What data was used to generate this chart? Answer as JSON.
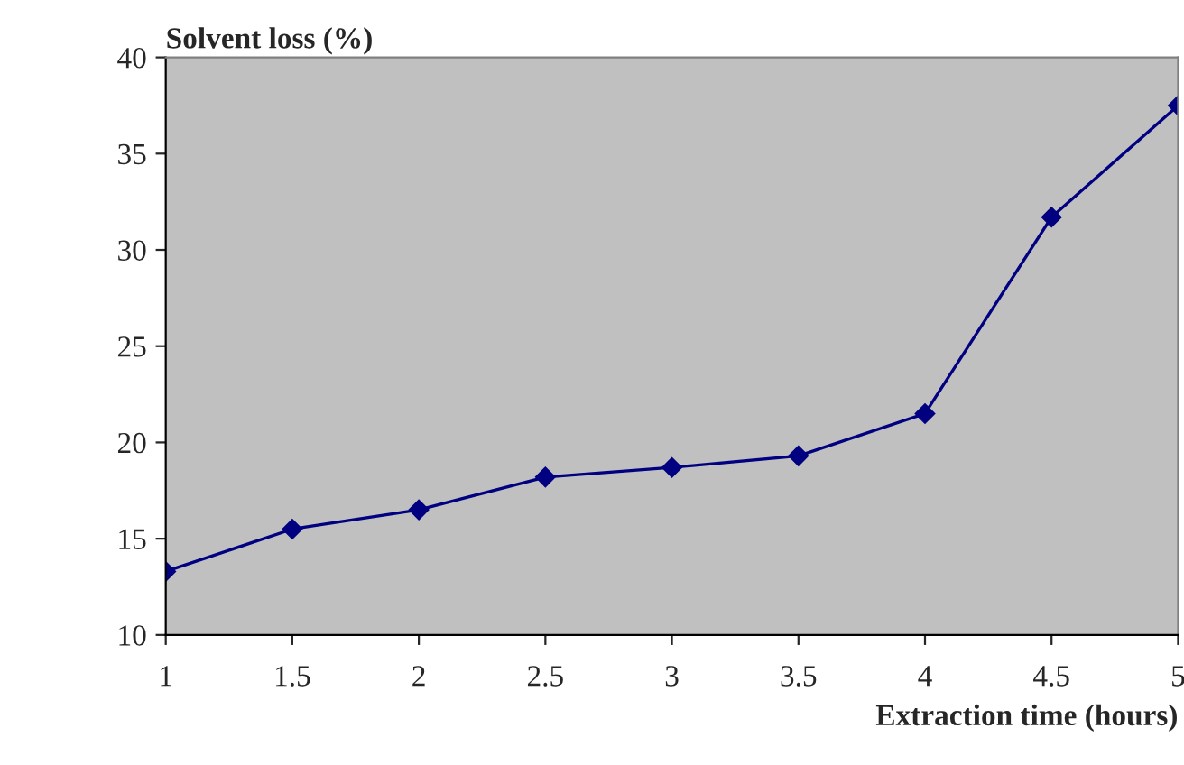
{
  "chart_data": {
    "type": "line",
    "xlabel": "Extraction time (hours)",
    "ylabel": "Solvent loss (%)",
    "x": [
      1,
      1.5,
      2,
      2.5,
      3,
      3.5,
      4,
      4.5,
      5
    ],
    "series": [
      {
        "color": "#000080",
        "values": [
          13.3,
          15.5,
          16.5,
          18.2,
          18.7,
          19.3,
          21.5,
          31.7,
          37.5
        ]
      }
    ],
    "xlim": [
      1,
      5
    ],
    "xticks": [
      1,
      1.5,
      2,
      2.5,
      3,
      3.5,
      4,
      4.5,
      5
    ],
    "ylim": [
      10,
      40
    ],
    "yticks": [
      10,
      15,
      20,
      25,
      30,
      35,
      40
    ],
    "marker": "diamond",
    "line_style": "solid",
    "grid": false,
    "legend": false
  }
}
